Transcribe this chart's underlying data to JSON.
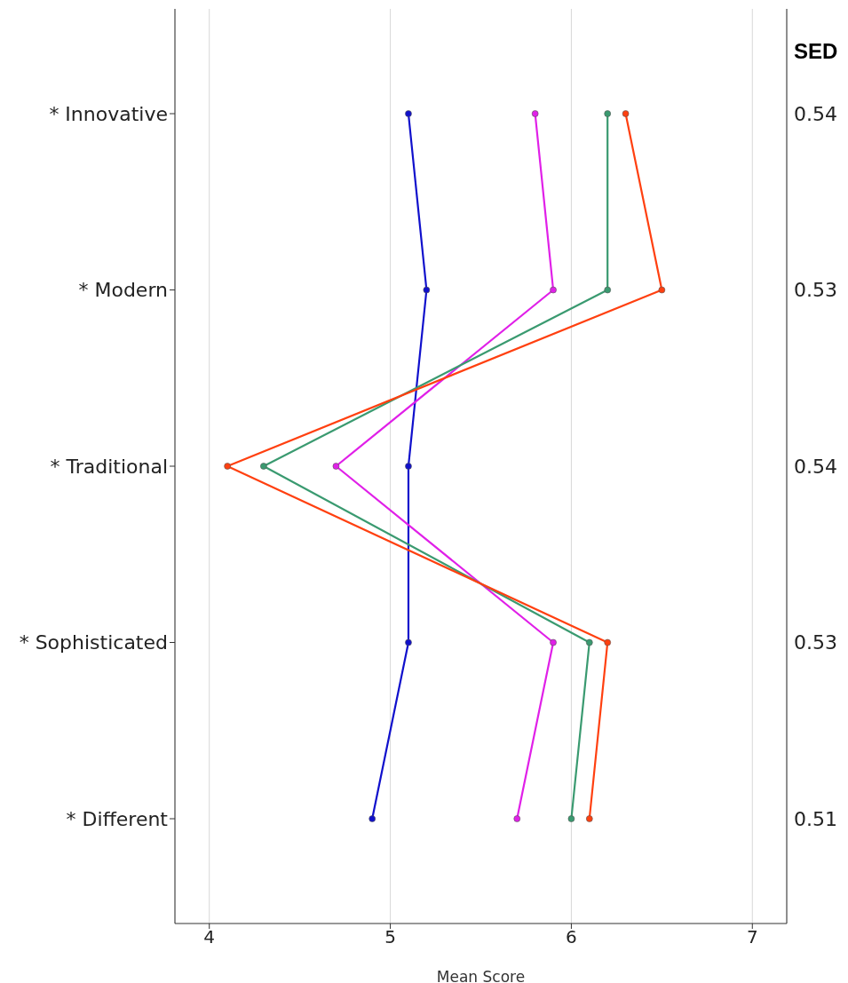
{
  "chart_data": {
    "type": "line",
    "xlabel": "Mean Score",
    "categories": [
      "* Innovative",
      "* Modern",
      "* Traditional",
      "* Sophisticated",
      "* Different"
    ],
    "series": [
      {
        "color": "#1010cc",
        "values": [
          5.1,
          5.2,
          5.1,
          5.1,
          4.9
        ]
      },
      {
        "color": "#e020e8",
        "values": [
          5.8,
          5.9,
          4.7,
          5.9,
          5.7
        ]
      },
      {
        "color": "#3a9a70",
        "values": [
          6.2,
          6.2,
          4.3,
          6.1,
          6.0
        ]
      },
      {
        "color": "#ff4010",
        "values": [
          6.3,
          6.5,
          4.1,
          6.2,
          6.1
        ]
      }
    ],
    "orientation": "horizontal",
    "xlim": [
      3.81,
      7.19
    ],
    "xticks": [
      4,
      5,
      6,
      7
    ],
    "grid": "x",
    "marker": "circle",
    "line_style": "solid",
    "annotations": [
      "SED",
      "0.54",
      "0.53",
      "0.54",
      "0.53",
      "0.51"
    ]
  }
}
